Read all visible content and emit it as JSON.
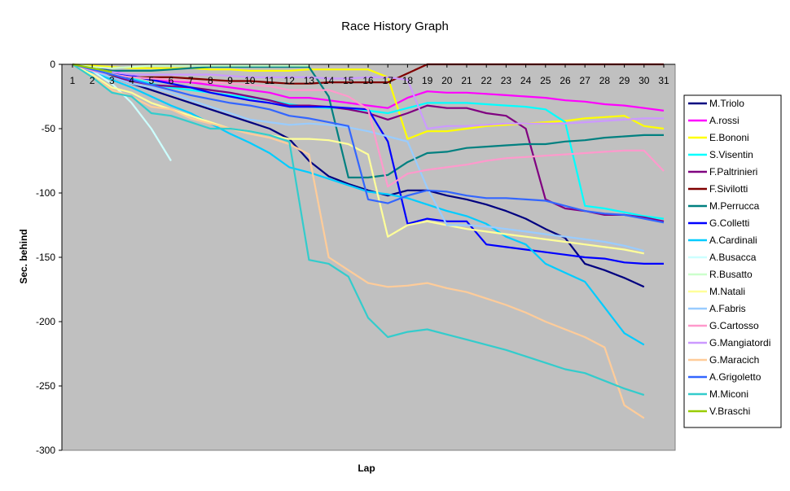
{
  "chart_data": {
    "type": "line",
    "title": "Race History Graph",
    "xlabel": "Lap",
    "ylabel": "Sec. behind",
    "x": [
      1,
      2,
      3,
      4,
      5,
      6,
      7,
      8,
      9,
      10,
      11,
      12,
      13,
      14,
      15,
      16,
      17,
      18,
      19,
      20,
      21,
      22,
      23,
      24,
      25,
      26,
      27,
      28,
      29,
      30,
      31
    ],
    "ylim": [
      -300,
      0
    ],
    "yticks": [
      0,
      -50,
      -100,
      -150,
      -200,
      -250,
      -300
    ],
    "grid": false,
    "legend_position": "right",
    "series": [
      {
        "name": "M.Triolo",
        "color": "#000080",
        "values": [
          0,
          -3,
          -10,
          -15,
          -20,
          -25,
          -30,
          -35,
          -40,
          -45,
          -50,
          -58,
          -75,
          -87,
          -93,
          -98,
          -102,
          -98,
          -98,
          -102,
          -105,
          -109,
          -114,
          -120,
          -128,
          -135,
          -155,
          -160,
          -166,
          -173,
          null
        ]
      },
      {
        "name": "A.rossi",
        "color": "#ff00ff",
        "values": [
          0,
          -2,
          -5,
          -9,
          -12,
          -13,
          -14,
          -16,
          -18,
          -20,
          -22,
          -26,
          -26,
          -28,
          -30,
          -32,
          -34,
          -26,
          -21,
          -22,
          -22,
          -23,
          -24,
          -25,
          -26,
          -28,
          -29,
          -31,
          -32,
          -34,
          -36
        ]
      },
      {
        "name": "E.Bononi",
        "color": "#ffff00",
        "values": [
          0,
          -1,
          -2,
          -3,
          -3,
          -3,
          -3,
          -4,
          -4,
          -5,
          -5,
          -5,
          -4,
          -4,
          -4,
          -4,
          -10,
          -58,
          -52,
          -52,
          -50,
          -48,
          -47,
          -46,
          -45,
          -44,
          -42,
          -41,
          -40,
          -48,
          -50
        ]
      },
      {
        "name": "S.Visentin",
        "color": "#00ffff",
        "values": [
          0,
          -4,
          -8,
          -11,
          -15,
          -18,
          -20,
          -22,
          -24,
          -26,
          -28,
          -31,
          -33,
          -34,
          -34,
          -36,
          -38,
          -34,
          -30,
          -30,
          -30,
          -31,
          -32,
          -33,
          -35,
          -45,
          -110,
          -112,
          -115,
          -118,
          -120
        ]
      },
      {
        "name": "F.Paltrinieri",
        "color": "#800080",
        "values": [
          0,
          -4,
          -9,
          -13,
          -16,
          -17,
          -18,
          -20,
          -22,
          -25,
          -28,
          -32,
          -32,
          -33,
          -35,
          -38,
          -43,
          -38,
          -32,
          -34,
          -34,
          -38,
          -40,
          -50,
          -105,
          -112,
          -114,
          -117,
          -117,
          -119,
          -122
        ]
      },
      {
        "name": "F.Sivilotti",
        "color": "#800000",
        "values": [
          0,
          -5,
          -9,
          -10,
          -10,
          -10,
          -11,
          -12,
          -13,
          -13,
          -14,
          -15,
          -15,
          -14,
          -14,
          -14,
          -14,
          -7,
          0,
          0,
          0,
          0,
          0,
          0,
          0,
          0,
          0,
          0,
          0,
          0,
          0
        ]
      },
      {
        "name": "M.Perrucca",
        "color": "#008080",
        "values": [
          0,
          -3,
          -5,
          -5,
          -5,
          -4,
          -3,
          -2,
          -2,
          -2,
          -2,
          -2,
          -2,
          -25,
          -88,
          -88,
          -86,
          -76,
          -69,
          -68,
          -65,
          -64,
          -63,
          -62,
          -62,
          -60,
          -59,
          -57,
          -56,
          -55,
          -55
        ]
      },
      {
        "name": "G.Colletti",
        "color": "#0000ff",
        "values": [
          0,
          -3,
          -6,
          -9,
          -12,
          -15,
          -18,
          -22,
          -25,
          -28,
          -30,
          -33,
          -33,
          -33,
          -34,
          -35,
          -60,
          -124,
          -120,
          -122,
          -122,
          -140,
          -142,
          -144,
          -146,
          -148,
          -150,
          -151,
          -154,
          -155,
          -155
        ]
      },
      {
        "name": "A.Cardinali",
        "color": "#00ccff",
        "values": [
          0,
          -6,
          -12,
          -18,
          -25,
          -32,
          -38,
          -46,
          -54,
          -61,
          -69,
          -80,
          -84,
          -89,
          -94,
          -99,
          -101,
          -104,
          -109,
          -114,
          -118,
          -124,
          -134,
          -140,
          -155,
          -162,
          -169,
          -189,
          -209,
          -218,
          null
        ]
      },
      {
        "name": "A.Busacca",
        "color": "#ccffff",
        "values": [
          0,
          -5,
          -15,
          -30,
          -50,
          -75,
          null,
          null,
          null,
          null,
          null,
          null,
          null,
          null,
          null,
          null,
          null,
          null,
          null,
          null,
          null,
          null,
          null,
          null,
          null,
          null,
          null,
          null,
          null,
          null,
          null
        ]
      },
      {
        "name": "R.Busatto",
        "color": "#ccffcc",
        "values": [
          0,
          -2,
          -3,
          -2,
          -1,
          -1,
          -1,
          -1,
          -1,
          -1,
          -1,
          -1,
          -1,
          null,
          null,
          null,
          null,
          null,
          null,
          null,
          null,
          null,
          null,
          null,
          null,
          null,
          null,
          null,
          null,
          null,
          null
        ]
      },
      {
        "name": "M.Natali",
        "color": "#ffff99",
        "values": [
          0,
          -8,
          -18,
          -22,
          -30,
          -35,
          -40,
          -45,
          -50,
          -52,
          -55,
          -58,
          -58,
          -59,
          -62,
          -70,
          -134,
          -125,
          -122,
          -125,
          -128,
          -130,
          -132,
          -134,
          -136,
          -138,
          -140,
          -142,
          -144,
          -147,
          null
        ]
      },
      {
        "name": "A.Fabris",
        "color": "#99ccff",
        "values": [
          0,
          -5,
          -10,
          -15,
          -18,
          -22,
          -28,
          -33,
          -38,
          -43,
          -45,
          -47,
          -46,
          -47,
          -49,
          -52,
          -56,
          -60,
          -96,
          -125,
          -125,
          -126,
          -128,
          -130,
          -132,
          -134,
          -136,
          -138,
          -141,
          -145,
          null
        ]
      },
      {
        "name": "G.Cartosso",
        "color": "#ff99cc",
        "values": [
          0,
          -5,
          -8,
          -10,
          -11,
          -12,
          -13,
          -14,
          -15,
          -16,
          -17,
          -20,
          -20,
          -20,
          -25,
          -35,
          -95,
          -85,
          -82,
          -80,
          -78,
          -75,
          -73,
          -72,
          -71,
          -70,
          -69,
          -68,
          -67,
          -67,
          -83
        ]
      },
      {
        "name": "G.Mangiatordi",
        "color": "#cc99ff",
        "values": [
          0,
          -3,
          -6,
          -8,
          -8,
          -8,
          -8,
          -8,
          -9,
          -10,
          -10,
          -10,
          -10,
          -11,
          -11,
          -10,
          -10,
          -12,
          -50,
          -48,
          -48,
          -47,
          -46,
          -46,
          -46,
          -46,
          -45,
          -44,
          -43,
          -42,
          -42
        ]
      },
      {
        "name": "G.Maracich",
        "color": "#ffcc99",
        "values": [
          0,
          -10,
          -20,
          -25,
          -33,
          -35,
          -42,
          -46,
          -50,
          -54,
          -57,
          -62,
          -70,
          -150,
          -160,
          -170,
          -173,
          -172,
          -170,
          -174,
          -177,
          -182,
          -187,
          -193,
          -200,
          -206,
          -212,
          -220,
          -265,
          -275,
          null
        ]
      },
      {
        "name": "A.Grigoletto",
        "color": "#3366ff",
        "values": [
          0,
          -4,
          -8,
          -12,
          -16,
          -20,
          -24,
          -27,
          -30,
          -32,
          -35,
          -40,
          -42,
          -45,
          -48,
          -105,
          -108,
          -102,
          -98,
          -99,
          -102,
          -104,
          -104,
          -105,
          -106,
          -110,
          -114,
          -116,
          -117,
          -120,
          -123
        ]
      },
      {
        "name": "M.Miconi",
        "color": "#33cccc",
        "values": [
          0,
          -10,
          -22,
          -25,
          -38,
          -40,
          -45,
          -50,
          -50,
          -52,
          -55,
          -60,
          -152,
          -155,
          -165,
          -197,
          -212,
          -208,
          -206,
          -210,
          -214,
          -218,
          -222,
          -227,
          -232,
          -237,
          -240,
          -246,
          -252,
          -257,
          null
        ]
      },
      {
        "name": "V.Braschi",
        "color": "#99cc00",
        "values": [
          0,
          -3,
          -6,
          null,
          null,
          null,
          null,
          null,
          null,
          null,
          null,
          null,
          null,
          null,
          null,
          null,
          null,
          null,
          null,
          null,
          null,
          null,
          null,
          null,
          null,
          null,
          null,
          null,
          null,
          null,
          null
        ]
      }
    ]
  }
}
